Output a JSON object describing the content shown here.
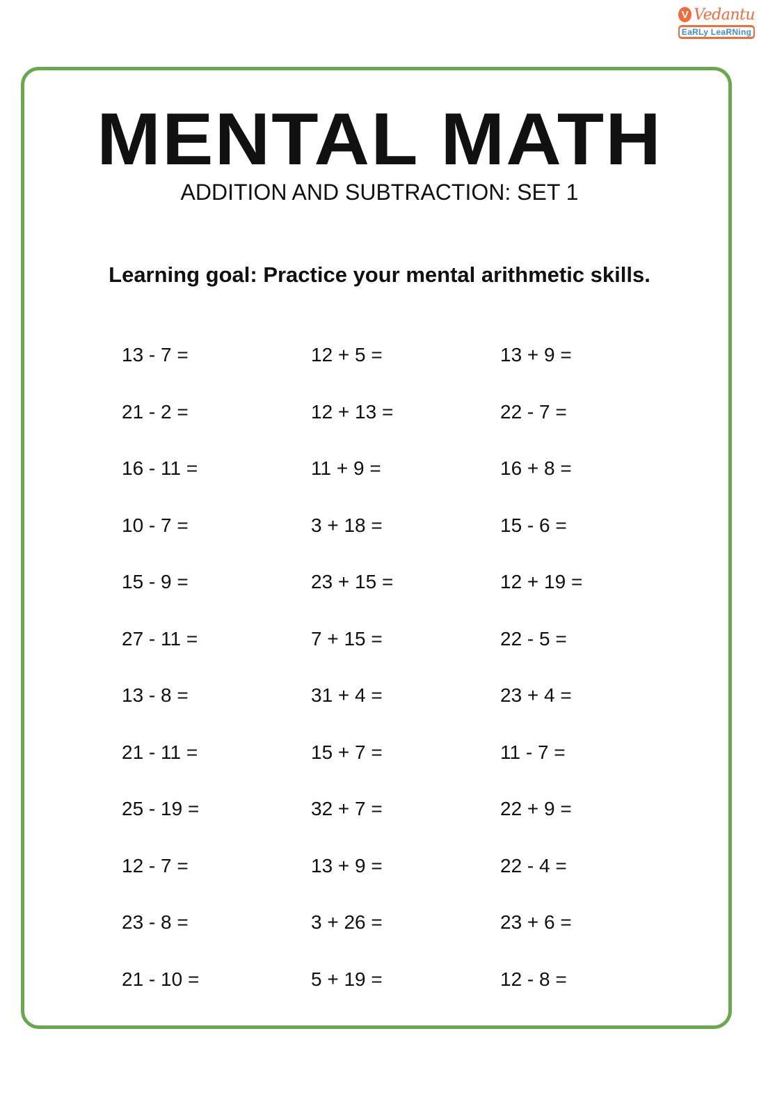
{
  "logo": {
    "brand": "Vedantu",
    "tagline": "EaRLy LeaRNing",
    "accent_color": "#f26b3a"
  },
  "border_color": "#6aa84f",
  "title": "MENTAL MATH",
  "subtitle": "ADDITION AND SUBTRACTION: SET 1",
  "learning_goal": "Learning goal: Practice your mental arithmetic skills.",
  "columns": [
    [
      "13 - 7 =",
      "21 - 2 =",
      "16 - 11 =",
      "10 - 7 =",
      "15 - 9 =",
      "27 - 11 =",
      "13 - 8 =",
      "21 - 11 =",
      "25 - 19 =",
      "12 - 7 =",
      "23 - 8 =",
      "21 - 10 ="
    ],
    [
      "12 + 5 =",
      "12 + 13 =",
      "11 + 9 =",
      "3 + 18 =",
      "23 + 15 =",
      "7 + 15 =",
      "31 + 4 =",
      "15 + 7 =",
      "32 + 7 =",
      "13 + 9 =",
      "3 + 26 =",
      "5 + 19 ="
    ],
    [
      "13 + 9 =",
      "22 - 7 =",
      "16 + 8 =",
      "15 - 6 =",
      "12 + 19 =",
      "22 - 5 =",
      "23 + 4 =",
      "11 - 7 =",
      "22 + 9 =",
      "22 - 4 =",
      "23 + 6 =",
      "12 - 8 ="
    ]
  ]
}
